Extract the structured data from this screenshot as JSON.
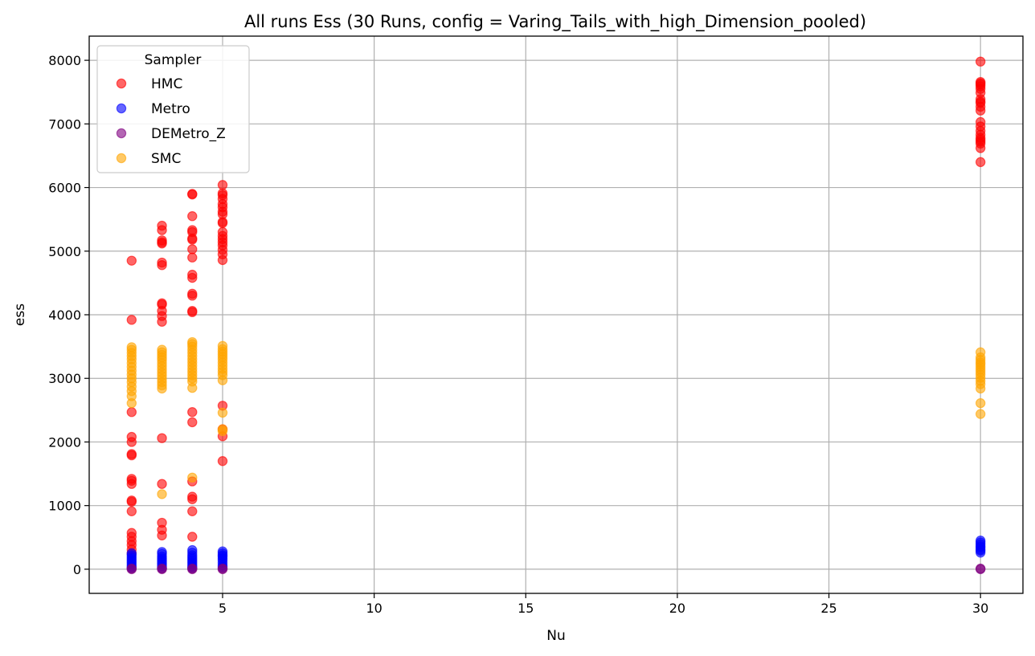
{
  "chart_data": {
    "type": "scatter",
    "title": "All runs Ess (30 Runs, config = Varing_Tails_with_high_Dimension_pooled)",
    "xlabel": "Nu",
    "ylabel": "ess",
    "xlim": [
      0.6,
      31.4
    ],
    "ylim": [
      -380,
      8380
    ],
    "xticks": [
      5,
      10,
      15,
      20,
      25,
      30
    ],
    "yticks": [
      0,
      1000,
      2000,
      3000,
      4000,
      5000,
      6000,
      7000,
      8000
    ],
    "grid": true,
    "legend": {
      "title": "Sampler",
      "position": "upper-left"
    },
    "series": [
      {
        "name": "HMC",
        "color": "#ff0000",
        "points": [
          [
            2,
            4850
          ],
          [
            2,
            3920
          ],
          [
            2,
            2470
          ],
          [
            2,
            2080
          ],
          [
            2,
            2000
          ],
          [
            2,
            1810
          ],
          [
            2,
            1790
          ],
          [
            2,
            1420
          ],
          [
            2,
            1390
          ],
          [
            2,
            1340
          ],
          [
            2,
            1080
          ],
          [
            2,
            1060
          ],
          [
            2,
            910
          ],
          [
            2,
            570
          ],
          [
            2,
            510
          ],
          [
            2,
            440
          ],
          [
            2,
            380
          ],
          [
            2,
            310
          ],
          [
            2,
            250
          ],
          [
            3,
            5400
          ],
          [
            3,
            5330
          ],
          [
            3,
            5170
          ],
          [
            3,
            5140
          ],
          [
            3,
            5120
          ],
          [
            3,
            4820
          ],
          [
            3,
            4780
          ],
          [
            3,
            4180
          ],
          [
            3,
            4160
          ],
          [
            3,
            4060
          ],
          [
            3,
            3980
          ],
          [
            3,
            3890
          ],
          [
            3,
            2060
          ],
          [
            3,
            1340
          ],
          [
            3,
            730
          ],
          [
            3,
            620
          ],
          [
            3,
            530
          ],
          [
            4,
            5900
          ],
          [
            4,
            5890
          ],
          [
            4,
            5550
          ],
          [
            4,
            5330
          ],
          [
            4,
            5300
          ],
          [
            4,
            5200
          ],
          [
            4,
            5180
          ],
          [
            4,
            5030
          ],
          [
            4,
            4900
          ],
          [
            4,
            4630
          ],
          [
            4,
            4580
          ],
          [
            4,
            4330
          ],
          [
            4,
            4300
          ],
          [
            4,
            4060
          ],
          [
            4,
            4040
          ],
          [
            4,
            2470
          ],
          [
            4,
            2310
          ],
          [
            4,
            1380
          ],
          [
            4,
            1140
          ],
          [
            4,
            1100
          ],
          [
            4,
            910
          ],
          [
            4,
            510
          ],
          [
            5,
            6040
          ],
          [
            5,
            5910
          ],
          [
            5,
            5880
          ],
          [
            5,
            5820
          ],
          [
            5,
            5740
          ],
          [
            5,
            5690
          ],
          [
            5,
            5620
          ],
          [
            5,
            5580
          ],
          [
            5,
            5460
          ],
          [
            5,
            5440
          ],
          [
            5,
            5300
          ],
          [
            5,
            5240
          ],
          [
            5,
            5190
          ],
          [
            5,
            5140
          ],
          [
            5,
            5090
          ],
          [
            5,
            5020
          ],
          [
            5,
            4950
          ],
          [
            5,
            4860
          ],
          [
            5,
            2570
          ],
          [
            5,
            2200
          ],
          [
            5,
            2090
          ],
          [
            5,
            1700
          ],
          [
            30,
            7980
          ],
          [
            30,
            7660
          ],
          [
            30,
            7640
          ],
          [
            30,
            7620
          ],
          [
            30,
            7590
          ],
          [
            30,
            7550
          ],
          [
            30,
            7490
          ],
          [
            30,
            7390
          ],
          [
            30,
            7350
          ],
          [
            30,
            7330
          ],
          [
            30,
            7270
          ],
          [
            30,
            7210
          ],
          [
            30,
            7030
          ],
          [
            30,
            6960
          ],
          [
            30,
            6890
          ],
          [
            30,
            6830
          ],
          [
            30,
            6780
          ],
          [
            30,
            6750
          ],
          [
            30,
            6720
          ],
          [
            30,
            6690
          ],
          [
            30,
            6620
          ],
          [
            30,
            6400
          ]
        ]
      },
      {
        "name": "Metro",
        "color": "#0000ff",
        "points": [
          [
            2,
            250
          ],
          [
            2,
            220
          ],
          [
            2,
            190
          ],
          [
            2,
            160
          ],
          [
            2,
            130
          ],
          [
            2,
            100
          ],
          [
            2,
            70
          ],
          [
            2,
            40
          ],
          [
            2,
            20
          ],
          [
            3,
            270
          ],
          [
            3,
            240
          ],
          [
            3,
            200
          ],
          [
            3,
            170
          ],
          [
            3,
            140
          ],
          [
            3,
            110
          ],
          [
            3,
            80
          ],
          [
            3,
            50
          ],
          [
            3,
            20
          ],
          [
            4,
            300
          ],
          [
            4,
            260
          ],
          [
            4,
            220
          ],
          [
            4,
            190
          ],
          [
            4,
            160
          ],
          [
            4,
            130
          ],
          [
            4,
            100
          ],
          [
            4,
            70
          ],
          [
            4,
            40
          ],
          [
            4,
            20
          ],
          [
            5,
            280
          ],
          [
            5,
            250
          ],
          [
            5,
            220
          ],
          [
            5,
            200
          ],
          [
            5,
            170
          ],
          [
            5,
            140
          ],
          [
            5,
            100
          ],
          [
            5,
            60
          ],
          [
            5,
            30
          ],
          [
            30,
            450
          ],
          [
            30,
            420
          ],
          [
            30,
            390
          ],
          [
            30,
            360
          ],
          [
            30,
            340
          ],
          [
            30,
            310
          ],
          [
            30,
            290
          ],
          [
            30,
            260
          ]
        ]
      },
      {
        "name": "DEMetro_Z",
        "color": "#800080",
        "points": [
          [
            2,
            10
          ],
          [
            2,
            0
          ],
          [
            3,
            10
          ],
          [
            3,
            0
          ],
          [
            4,
            10
          ],
          [
            4,
            0
          ],
          [
            5,
            10
          ],
          [
            5,
            0
          ],
          [
            30,
            10
          ],
          [
            30,
            0
          ]
        ]
      },
      {
        "name": "SMC",
        "color": "#ffa500",
        "points": [
          [
            2,
            3490
          ],
          [
            2,
            3450
          ],
          [
            2,
            3400
          ],
          [
            2,
            3350
          ],
          [
            2,
            3300
          ],
          [
            2,
            3240
          ],
          [
            2,
            3180
          ],
          [
            2,
            3120
          ],
          [
            2,
            3060
          ],
          [
            2,
            3000
          ],
          [
            2,
            2940
          ],
          [
            2,
            2870
          ],
          [
            2,
            2800
          ],
          [
            2,
            2720
          ],
          [
            2,
            2610
          ],
          [
            3,
            3450
          ],
          [
            3,
            3410
          ],
          [
            3,
            3370
          ],
          [
            3,
            3330
          ],
          [
            3,
            3290
          ],
          [
            3,
            3240
          ],
          [
            3,
            3190
          ],
          [
            3,
            3140
          ],
          [
            3,
            3090
          ],
          [
            3,
            3040
          ],
          [
            3,
            2990
          ],
          [
            3,
            2940
          ],
          [
            3,
            2890
          ],
          [
            3,
            2840
          ],
          [
            3,
            1180
          ],
          [
            4,
            3570
          ],
          [
            4,
            3540
          ],
          [
            4,
            3500
          ],
          [
            4,
            3450
          ],
          [
            4,
            3400
          ],
          [
            4,
            3350
          ],
          [
            4,
            3300
          ],
          [
            4,
            3250
          ],
          [
            4,
            3200
          ],
          [
            4,
            3150
          ],
          [
            4,
            3100
          ],
          [
            4,
            3050
          ],
          [
            4,
            3000
          ],
          [
            4,
            2950
          ],
          [
            4,
            2850
          ],
          [
            4,
            1440
          ],
          [
            5,
            3510
          ],
          [
            5,
            3460
          ],
          [
            5,
            3420
          ],
          [
            5,
            3380
          ],
          [
            5,
            3340
          ],
          [
            5,
            3300
          ],
          [
            5,
            3250
          ],
          [
            5,
            3200
          ],
          [
            5,
            3150
          ],
          [
            5,
            3100
          ],
          [
            5,
            3050
          ],
          [
            5,
            2970
          ],
          [
            5,
            2460
          ],
          [
            5,
            2200
          ],
          [
            5,
            2170
          ],
          [
            30,
            3410
          ],
          [
            30,
            3330
          ],
          [
            30,
            3290
          ],
          [
            30,
            3250
          ],
          [
            30,
            3220
          ],
          [
            30,
            3180
          ],
          [
            30,
            3140
          ],
          [
            30,
            3100
          ],
          [
            30,
            3060
          ],
          [
            30,
            3010
          ],
          [
            30,
            2960
          ],
          [
            30,
            2910
          ],
          [
            30,
            2840
          ],
          [
            30,
            2610
          ],
          [
            30,
            2440
          ]
        ]
      }
    ]
  }
}
